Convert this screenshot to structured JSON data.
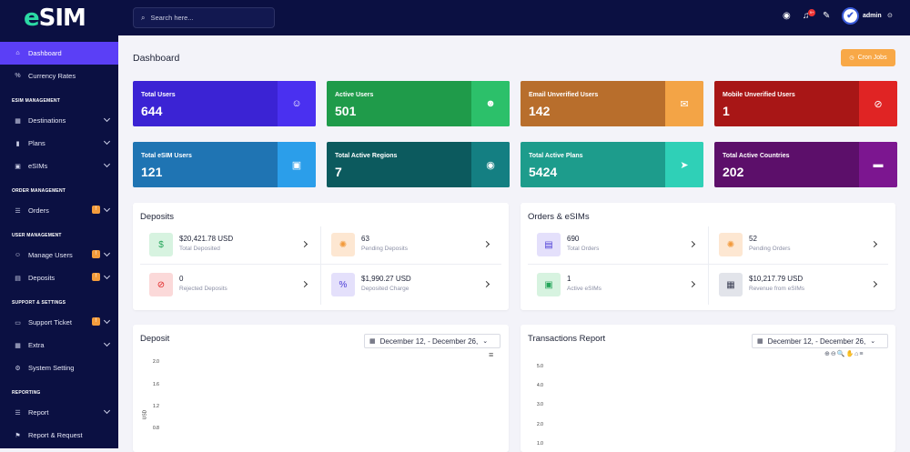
{
  "brand": {
    "logo_e": "e",
    "logo_rest": "SIM"
  },
  "search": {
    "placeholder": "Search here..."
  },
  "topbar": {
    "user_name": "admin",
    "avatar_initial": "✔",
    "notif_count": "9+"
  },
  "sidebar": {
    "items_top": [
      {
        "label": "Dashboard",
        "icon": "home-icon"
      },
      {
        "label": "Currency Rates",
        "icon": "percent-icon"
      }
    ],
    "esim_section": "ESIM MANAGEMENT",
    "esim_items": [
      {
        "label": "Destinations",
        "icon": "map-icon"
      },
      {
        "label": "Plans",
        "icon": "chart-icon"
      },
      {
        "label": "eSIMs",
        "icon": "sim-icon"
      }
    ],
    "order_section": "ORDER MANAGEMENT",
    "order_items": [
      {
        "label": "Orders",
        "icon": "list-icon",
        "badge": "!"
      }
    ],
    "user_section": "USER MANAGEMENT",
    "user_items": [
      {
        "label": "Manage Users",
        "icon": "users-icon",
        "badge": "!"
      },
      {
        "label": "Deposits",
        "icon": "wallet-icon",
        "badge": "!"
      }
    ],
    "support_section": "SUPPORT & SETTINGS",
    "support_items": [
      {
        "label": "Support Ticket",
        "icon": "ticket-icon",
        "badge": "!"
      },
      {
        "label": "Extra",
        "icon": "grid-icon"
      },
      {
        "label": "System Setting",
        "icon": "gear-icon"
      }
    ],
    "report_section": "REPORTING",
    "report_items": [
      {
        "label": "Report",
        "icon": "list-icon"
      },
      {
        "label": "Report & Request",
        "icon": "report-icon"
      }
    ]
  },
  "page": {
    "title": "Dashboard",
    "cron_label": "Cron Jobs"
  },
  "stats": [
    {
      "label": "Total Users",
      "value": "644",
      "icon": "user-icon",
      "color": "#3b23d4",
      "icon_bg": "#4a30f0"
    },
    {
      "label": "Active Users",
      "value": "501",
      "icon": "user-check-icon",
      "color": "#1f9b4a",
      "icon_bg": "#2cc06a"
    },
    {
      "label": "Email Unverified Users",
      "value": "142",
      "icon": "envelope-icon",
      "color": "#b86e2c",
      "icon_bg": "#f3a446"
    },
    {
      "label": "Mobile Unverified Users",
      "value": "1",
      "icon": "no-mobile-icon",
      "color": "#a81616",
      "icon_bg": "#e02424"
    },
    {
      "label": "Total eSIM Users",
      "value": "121",
      "icon": "sim-icon",
      "color": "#1f74b3",
      "icon_bg": "#2b9eea"
    },
    {
      "label": "Total Active Regions",
      "value": "7",
      "icon": "globe-icon",
      "color": "#0c5a5e",
      "icon_bg": "#147f82"
    },
    {
      "label": "Total Active Plans",
      "value": "5424",
      "icon": "send-icon",
      "color": "#1d9c8c",
      "icon_bg": "#2fd0b7"
    },
    {
      "label": "Total Active Countries",
      "value": "202",
      "icon": "flag-icon",
      "color": "#5c0f6a",
      "icon_bg": "#7c1690"
    }
  ],
  "deposits": {
    "title": "Deposits",
    "cells": [
      {
        "value": "$20,421.78 USD",
        "label": "Total Deposited",
        "icon": "hand-money-icon",
        "bg": "#d7f3e0",
        "fg": "#25a55a"
      },
      {
        "value": "63",
        "label": "Pending Deposits",
        "icon": "spinner-icon",
        "bg": "#fde7d2",
        "fg": "#f29a3b"
      },
      {
        "value": "0",
        "label": "Rejected Deposits",
        "icon": "ban-icon",
        "bg": "#fbd9d9",
        "fg": "#e02424"
      },
      {
        "value": "$1,990.27 USD",
        "label": "Deposited Charge",
        "icon": "percent-icon",
        "bg": "#e4e0fb",
        "fg": "#4b3cd6"
      }
    ]
  },
  "orders": {
    "title": "Orders & eSIMs",
    "cells": [
      {
        "value": "690",
        "label": "Total Orders",
        "icon": "order-icon",
        "bg": "#e4e0fb",
        "fg": "#4b3cd6"
      },
      {
        "value": "52",
        "label": "Pending Orders",
        "icon": "spinner-icon",
        "bg": "#fde7d2",
        "fg": "#f29a3b"
      },
      {
        "value": "1",
        "label": "Active eSIMs",
        "icon": "sim-icon",
        "bg": "#d7f3e0",
        "fg": "#25a55a"
      },
      {
        "value": "$10,217.79 USD",
        "label": "Revenue from eSIMs",
        "icon": "invoice-icon",
        "bg": "#e2e4ea",
        "fg": "#3b3f54"
      }
    ]
  },
  "deposit_chart": {
    "title": "Deposit",
    "date_range": "December 12, - December 26,",
    "ylabel": "USD",
    "y_ticks": [
      "2.0",
      "1.6",
      "1.2",
      "0.8"
    ]
  },
  "transactions_chart": {
    "title": "Transactions Report",
    "date_range": "December 12, - December 26,",
    "y_ticks": [
      "5.0",
      "4.0",
      "3.0",
      "2.0",
      "1.0"
    ],
    "tools": "⊕⊖🔍✋⌂≡"
  }
}
